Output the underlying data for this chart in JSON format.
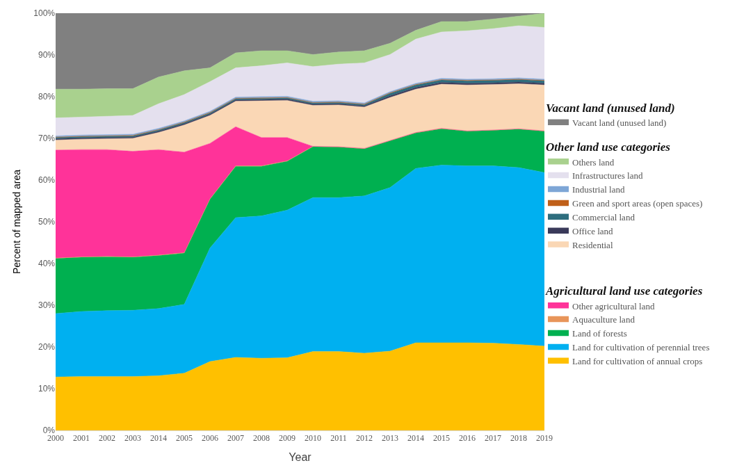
{
  "chart_data": {
    "type": "area",
    "stacked": true,
    "xlabel": "Year",
    "ylabel": "Percent of mapped area",
    "annotations": [
      "Vacant land (unused land)",
      "Other land use categories",
      "Agricultural land use categories"
    ],
    "categories": [
      "2000",
      "2001",
      "2002",
      "2003",
      "2014",
      "2005",
      "2006",
      "2007",
      "2008",
      "2009",
      "2010",
      "2011",
      "2012",
      "2013",
      "2014",
      "2015",
      "2016",
      "2017",
      "2018",
      "2019"
    ],
    "ylim": [
      0,
      100
    ],
    "yticks": [
      {
        "value": 0,
        "label": "0%"
      },
      {
        "value": 10,
        "label": "10%"
      },
      {
        "value": 20,
        "label": "20%"
      },
      {
        "value": 30,
        "label": "30%"
      },
      {
        "value": 40,
        "label": "40%"
      },
      {
        "value": 50,
        "label": "50%"
      },
      {
        "value": 60,
        "label": "60%"
      },
      {
        "value": 70,
        "label": "70%"
      },
      {
        "value": 80,
        "label": "80%"
      },
      {
        "value": 90,
        "label": "90%"
      },
      {
        "value": 100,
        "label": "100%"
      }
    ],
    "legend": "right",
    "marker": "none",
    "series": [
      {
        "name": "Land for cultivation of annual crops",
        "color": "#ffc000",
        "values": [
          12.8,
          12.9,
          12.9,
          12.9,
          13.1,
          13.7,
          16.5,
          17.5,
          17.3,
          17.4,
          18.9,
          18.9,
          18.5,
          19.0,
          21.0,
          21.0,
          21.0,
          20.9,
          20.6,
          20.2
        ]
      },
      {
        "name": "Land for cultivation of perennial trees",
        "color": "#00b0f0",
        "values": [
          15.2,
          15.6,
          15.8,
          15.9,
          16.1,
          16.5,
          27.2,
          33.5,
          34.1,
          35.4,
          36.9,
          36.9,
          37.7,
          39.2,
          41.8,
          42.6,
          42.4,
          42.5,
          42.4,
          41.6
        ]
      },
      {
        "name": "Land of forests",
        "color": "#00b050",
        "values": [
          13.2,
          13.0,
          12.9,
          12.7,
          12.7,
          12.3,
          11.7,
          12.3,
          11.9,
          11.7,
          12.2,
          12.1,
          11.3,
          11.2,
          8.5,
          8.7,
          8.3,
          8.5,
          9.2,
          9.9
        ]
      },
      {
        "name": "Aquaculture land",
        "color": "#e8955a",
        "values": [
          0.1,
          0.1,
          0.1,
          0.1,
          0.1,
          0.1,
          0.1,
          0.1,
          0.1,
          0.1,
          0.1,
          0.1,
          0.1,
          0.1,
          0.1,
          0.1,
          0.1,
          0.1,
          0.1,
          0.1
        ]
      },
      {
        "name": "Other agricultural land",
        "color": "#ff3399",
        "values": [
          25.9,
          25.7,
          25.6,
          25.3,
          25.3,
          24.1,
          13.3,
          9.4,
          6.8,
          5.6,
          0,
          0,
          0,
          0,
          0,
          0,
          0,
          0,
          0,
          0
        ]
      },
      {
        "name": "Residential",
        "color": "#fad7b5",
        "values": [
          2.4,
          2.5,
          2.6,
          3.1,
          4.1,
          6.5,
          6.7,
          6.1,
          8.8,
          8.9,
          9.8,
          10.0,
          9.9,
          10.3,
          10.4,
          10.6,
          11.0,
          10.9,
          10.8,
          11.0
        ]
      },
      {
        "name": "Office land",
        "color": "#3a3a5a",
        "values": [
          0.3,
          0.3,
          0.3,
          0.3,
          0.3,
          0.3,
          0.3,
          0.3,
          0.3,
          0.3,
          0.3,
          0.3,
          0.3,
          0.4,
          0.4,
          0.4,
          0.4,
          0.4,
          0.4,
          0.4
        ]
      },
      {
        "name": "Commercial land",
        "color": "#2e6e7e",
        "values": [
          0.3,
          0.3,
          0.3,
          0.3,
          0.3,
          0.3,
          0.3,
          0.3,
          0.3,
          0.3,
          0.3,
          0.3,
          0.3,
          0.6,
          0.6,
          0.6,
          0.6,
          0.6,
          0.6,
          0.6
        ]
      },
      {
        "name": "Green and sport areas (open spaces)",
        "color": "#c0601a",
        "values": [
          0.1,
          0.1,
          0.1,
          0.1,
          0.1,
          0.1,
          0.1,
          0.1,
          0.1,
          0.1,
          0.1,
          0.1,
          0.1,
          0.1,
          0.1,
          0.1,
          0.1,
          0.1,
          0.1,
          0.1
        ]
      },
      {
        "name": "Industrial land",
        "color": "#7ea6d6",
        "values": [
          0.3,
          0.3,
          0.3,
          0.3,
          0.3,
          0.3,
          0.3,
          0.3,
          0.3,
          0.3,
          0.3,
          0.3,
          0.3,
          0.3,
          0.3,
          0.3,
          0.3,
          0.3,
          0.3,
          0.3
        ]
      },
      {
        "name": "Infrastructures land",
        "color": "#e4e0ee",
        "values": [
          4.3,
          4.3,
          4.4,
          4.5,
          5.9,
          6.3,
          7.1,
          7.0,
          7.4,
          8.0,
          8.3,
          8.8,
          9.6,
          8.9,
          10.6,
          11.1,
          11.6,
          12.0,
          12.5,
          12.4
        ]
      },
      {
        "name": "Others land",
        "color": "#a9d18e",
        "values": [
          6.9,
          6.7,
          6.6,
          6.4,
          6.4,
          5.7,
          3.3,
          3.6,
          3.6,
          2.9,
          2.9,
          2.9,
          2.9,
          2.7,
          2.1,
          2.5,
          2.2,
          2.3,
          2.3,
          3.4
        ]
      },
      {
        "name": "Vacant land (unused land)",
        "color": "#808080",
        "values": [
          18.2,
          18.2,
          18.1,
          18.1,
          15.3,
          13.8,
          13.1,
          9.5,
          9.0,
          9.0,
          9.9,
          9.3,
          9.0,
          7.2,
          4.1,
          2.0,
          2.0,
          1.4,
          0.7,
          0
        ]
      }
    ]
  }
}
